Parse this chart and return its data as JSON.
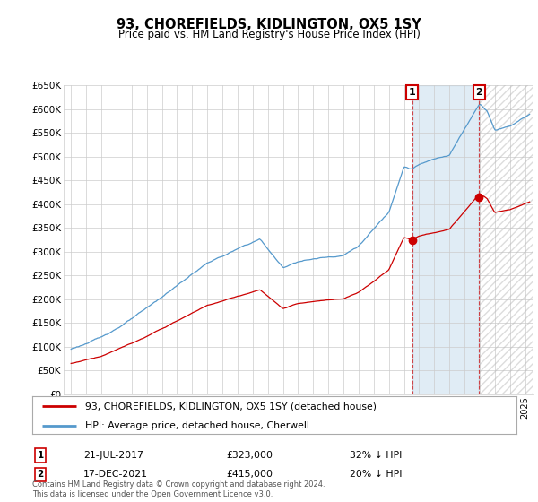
{
  "title": "93, CHOREFIELDS, KIDLINGTON, OX5 1SY",
  "subtitle": "Price paid vs. HM Land Registry's House Price Index (HPI)",
  "legend_line1": "93, CHOREFIELDS, KIDLINGTON, OX5 1SY (detached house)",
  "legend_line2": "HPI: Average price, detached house, Cherwell",
  "annotation1_date": "21-JUL-2017",
  "annotation1_price": "£323,000",
  "annotation1_hpi": "32% ↓ HPI",
  "annotation1_year": 2017.55,
  "annotation1_value": 323000,
  "annotation2_date": "17-DEC-2021",
  "annotation2_price": "£415,000",
  "annotation2_hpi": "20% ↓ HPI",
  "annotation2_year": 2021.96,
  "annotation2_value": 415000,
  "footer": "Contains HM Land Registry data © Crown copyright and database right 2024.\nThis data is licensed under the Open Government Licence v3.0.",
  "ylim": [
    0,
    650000
  ],
  "yticks": [
    0,
    50000,
    100000,
    150000,
    200000,
    250000,
    300000,
    350000,
    400000,
    450000,
    500000,
    550000,
    600000,
    650000
  ],
  "ytick_labels": [
    "£0",
    "£50K",
    "£100K",
    "£150K",
    "£200K",
    "£250K",
    "£300K",
    "£350K",
    "£400K",
    "£450K",
    "£500K",
    "£550K",
    "£600K",
    "£650K"
  ],
  "red_color": "#cc0000",
  "blue_color": "#5599cc",
  "shade_color": "#ddeeff",
  "background_color": "#ffffff",
  "grid_color": "#cccccc",
  "annotation_box_color": "#cc0000",
  "hatch_color": "#bbbbbb"
}
